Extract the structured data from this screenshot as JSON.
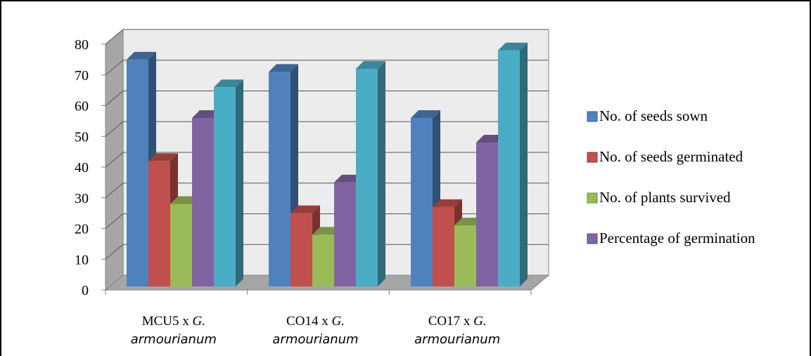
{
  "chart_data": {
    "type": "bar",
    "categories": [
      {
        "name": "MCU5 x ",
        "italic": "G.",
        "line2": "armourianum"
      },
      {
        "name": "CO14  x ",
        "italic": "G.",
        "line2": "armourianum"
      },
      {
        "name": "CO17 x ",
        "italic": "G.",
        "line2": "armourianum"
      }
    ],
    "series": [
      {
        "name": "No. of seeds sown",
        "values": [
          75,
          71,
          56
        ],
        "color": "#4f81bd"
      },
      {
        "name": "No. of seeds germinated",
        "values": [
          42,
          25,
          27
        ],
        "color": "#c0504d"
      },
      {
        "name": "No. of plants survived",
        "values": [
          28,
          18,
          21
        ],
        "color": "#9bbb59"
      },
      {
        "name": "Percentage of germination",
        "values": [
          56,
          35,
          48
        ],
        "color": "#8064a2"
      },
      {
        "name": "",
        "values": [
          66,
          72,
          78
        ],
        "color": "#4bacc6"
      }
    ],
    "yticks": [
      "0",
      "10",
      "20",
      "30",
      "40",
      "50",
      "60",
      "70",
      "80"
    ],
    "ylim": [
      0,
      80
    ],
    "grid": true,
    "legend_position": "right",
    "title": "",
    "xlabel": "",
    "ylabel": ""
  }
}
